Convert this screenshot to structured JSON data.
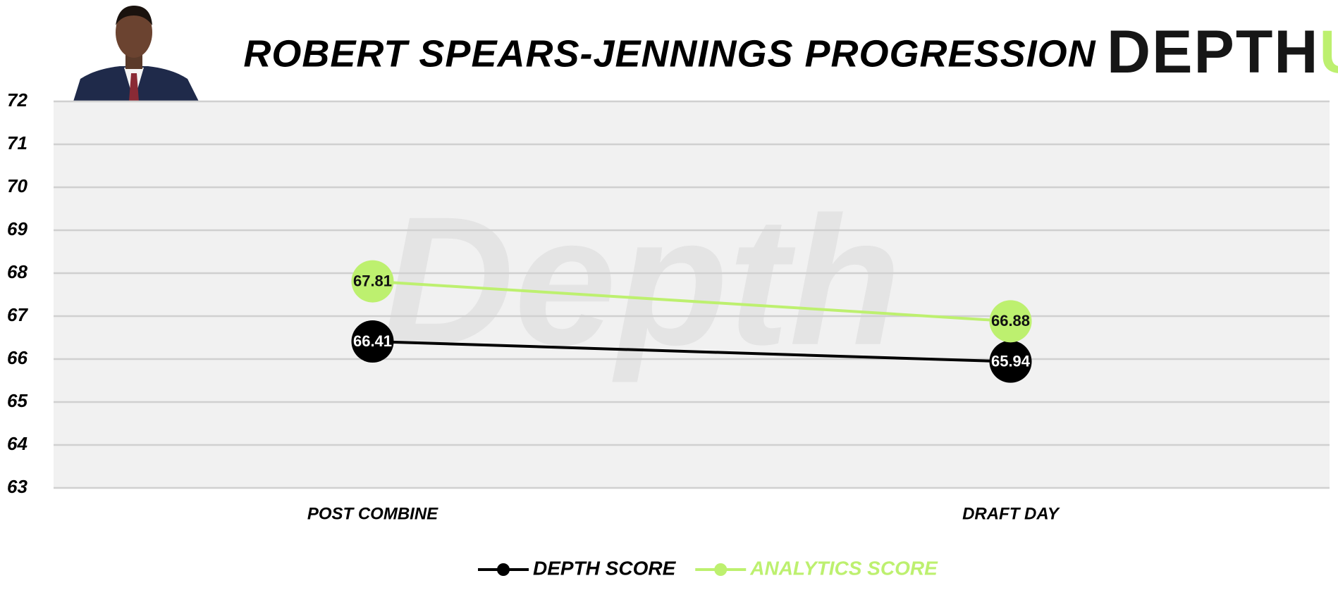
{
  "chart_data": {
    "type": "line",
    "title": "ROBERT SPEARS-JENNINGS PROGRESSION",
    "logo": {
      "text": "DEPTH",
      "accent": "U"
    },
    "watermark": "Depth",
    "categories": [
      "POST COMBINE",
      "DRAFT DAY"
    ],
    "series": [
      {
        "name": "DEPTH SCORE",
        "color": "#000000",
        "label_color": "#ffffff",
        "values": [
          66.41,
          65.94
        ]
      },
      {
        "name": "ANALYTICS SCORE",
        "color": "#bdf06f",
        "label_color": "#111111",
        "values": [
          67.81,
          66.88
        ]
      }
    ],
    "ylim": [
      63,
      72
    ],
    "yticks": [
      63,
      64,
      65,
      66,
      67,
      68,
      69,
      70,
      71,
      72
    ],
    "grid": true,
    "legend": "bottom"
  }
}
